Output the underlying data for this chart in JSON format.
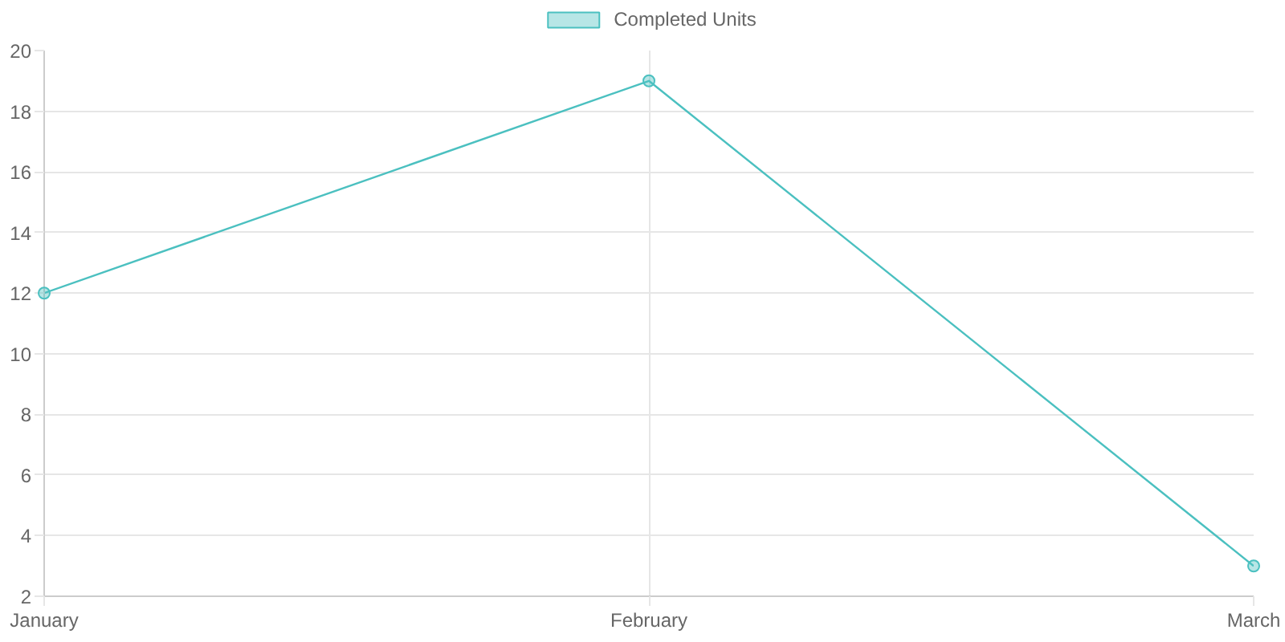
{
  "chart_data": {
    "type": "line",
    "categories": [
      "January",
      "February",
      "March"
    ],
    "series": [
      {
        "name": "Completed Units",
        "color": "#4bc0c0",
        "values": [
          12,
          19,
          3
        ]
      }
    ],
    "ylim": [
      2,
      20
    ],
    "yticks": [
      2,
      4,
      6,
      8,
      10,
      12,
      14,
      16,
      18,
      20
    ],
    "grid": true,
    "legend": "top",
    "marker": "circle",
    "line_style": "solid"
  }
}
